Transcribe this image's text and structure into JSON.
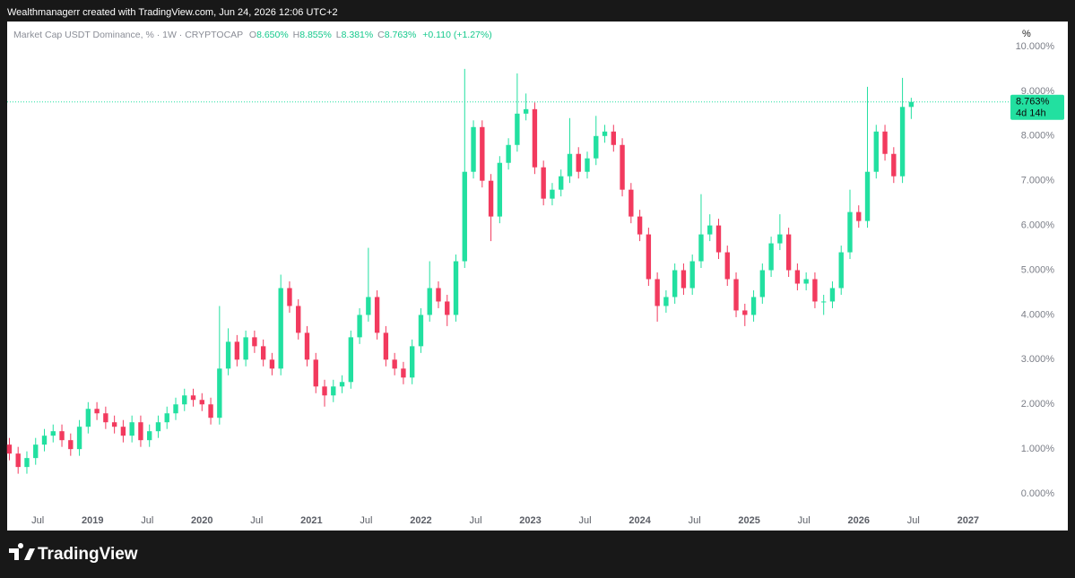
{
  "caption": "Wealthmanagerr created with TradingView.com, Jun 24, 2026 12:06 UTC+2",
  "brand": "TradingView",
  "chart_data": {
    "type": "candlestick",
    "title": "Market Cap USDT Dominance, % · 1W · CRYPTOCAP",
    "ohlc": [
      {
        "name": "O",
        "value": 8.65,
        "label": "8.650%"
      },
      {
        "name": "H",
        "value": 8.855,
        "label": "8.855%"
      },
      {
        "name": "L",
        "value": 8.381,
        "label": "8.381%"
      },
      {
        "name": "C",
        "value": 8.763,
        "label": "8.763%"
      }
    ],
    "change": "+0.110 (+1.27%)",
    "unit": "%",
    "last_price": {
      "value": 8.763,
      "label": "8.763%"
    },
    "countdown": "4d 14h",
    "up_color": "#22e0a0",
    "down_color": "#f23a5e",
    "grid": false,
    "xlim": [
      2018.22,
      2027.37
    ],
    "xticks": [
      {
        "value": 2018.5,
        "label": "Jul"
      },
      2019,
      {
        "value": 2019.5,
        "label": "Jul"
      },
      2020,
      {
        "value": 2020.5,
        "label": "Jul"
      },
      2021,
      {
        "value": 2021.5,
        "label": "Jul"
      },
      2022,
      {
        "value": 2022.5,
        "label": "Jul"
      },
      2023,
      {
        "value": 2023.5,
        "label": "Jul"
      },
      2024,
      {
        "value": 2024.5,
        "label": "Jul"
      },
      2025,
      {
        "value": 2025.5,
        "label": "Jul"
      },
      2026,
      {
        "value": 2026.5,
        "label": "Jul"
      },
      2027
    ],
    "ylim": [
      -0.82,
      10.56
    ],
    "yticks": [
      {
        "value": 0,
        "label": "0.000%"
      },
      {
        "value": 1,
        "label": "1.000%"
      },
      {
        "value": 2,
        "label": "2.000%"
      },
      {
        "value": 3,
        "label": "3.000%"
      },
      {
        "value": 4,
        "label": "4.000%"
      },
      {
        "value": 5,
        "label": "5.000%"
      },
      {
        "value": 6,
        "label": "6.000%"
      },
      {
        "value": 7,
        "label": "7.000%"
      },
      {
        "value": 8,
        "label": "8.000%"
      },
      {
        "value": 9,
        "label": "9.000%"
      },
      {
        "value": 10,
        "label": "10.000%"
      }
    ],
    "x": [
      2018.24,
      2018.32,
      2018.4,
      2018.48,
      2018.56,
      2018.64,
      2018.72,
      2018.8,
      2018.88,
      2018.96,
      2019.04,
      2019.12,
      2019.2,
      2019.28,
      2019.36,
      2019.44,
      2019.52,
      2019.6,
      2019.68,
      2019.76,
      2019.84,
      2019.92,
      2020.0,
      2020.08,
      2020.16,
      2020.24,
      2020.32,
      2020.4,
      2020.48,
      2020.56,
      2020.64,
      2020.72,
      2020.8,
      2020.88,
      2020.96,
      2021.04,
      2021.12,
      2021.2,
      2021.28,
      2021.36,
      2021.44,
      2021.52,
      2021.6,
      2021.68,
      2021.76,
      2021.84,
      2021.92,
      2022.0,
      2022.08,
      2022.16,
      2022.24,
      2022.32,
      2022.4,
      2022.48,
      2022.56,
      2022.64,
      2022.72,
      2022.8,
      2022.88,
      2022.96,
      2023.04,
      2023.12,
      2023.2,
      2023.28,
      2023.36,
      2023.44,
      2023.52,
      2023.6,
      2023.68,
      2023.76,
      2023.84,
      2023.92,
      2024.0,
      2024.08,
      2024.16,
      2024.24,
      2024.32,
      2024.4,
      2024.48,
      2024.56,
      2024.64,
      2024.72,
      2024.8,
      2024.88,
      2024.96,
      2025.04,
      2025.12,
      2025.2,
      2025.28,
      2025.36,
      2025.44,
      2025.52,
      2025.6,
      2025.68,
      2025.76,
      2025.84,
      2025.92,
      2026.0,
      2026.08,
      2026.16,
      2026.24,
      2026.32,
      2026.4,
      2026.48
    ],
    "open": [
      1.1,
      0.9,
      0.6,
      0.8,
      1.1,
      1.3,
      1.4,
      1.2,
      1.0,
      1.5,
      1.9,
      1.8,
      1.6,
      1.5,
      1.3,
      1.6,
      1.2,
      1.4,
      1.6,
      1.8,
      2.0,
      2.2,
      2.1,
      2.0,
      1.7,
      2.8,
      3.4,
      3.0,
      3.5,
      3.3,
      3.0,
      2.8,
      4.6,
      4.2,
      3.6,
      3.0,
      2.4,
      2.2,
      2.4,
      2.5,
      3.5,
      4.0,
      4.4,
      3.6,
      3.0,
      2.8,
      2.6,
      3.3,
      4.0,
      4.6,
      4.3,
      4.0,
      5.2,
      7.2,
      8.2,
      7.0,
      6.2,
      7.4,
      7.8,
      8.5,
      8.6,
      7.3,
      6.6,
      6.8,
      7.1,
      7.6,
      7.2,
      7.5,
      8.0,
      8.1,
      7.8,
      6.8,
      6.2,
      5.8,
      4.8,
      4.2,
      4.4,
      5.0,
      4.6,
      5.2,
      5.8,
      6.0,
      5.4,
      4.8,
      4.1,
      4.0,
      4.4,
      5.0,
      5.6,
      5.8,
      5.0,
      4.7,
      4.8,
      4.3,
      4.3,
      4.6,
      5.4,
      6.3,
      6.1,
      7.2,
      8.1,
      7.6,
      7.1,
      8.65
    ],
    "high": [
      1.25,
      1.05,
      0.95,
      1.25,
      1.45,
      1.55,
      1.55,
      1.35,
      1.65,
      2.05,
      2.05,
      1.95,
      1.75,
      1.65,
      1.75,
      1.75,
      1.55,
      1.75,
      1.95,
      2.15,
      2.35,
      2.35,
      2.25,
      2.15,
      4.2,
      3.7,
      3.55,
      3.65,
      3.65,
      3.45,
      3.15,
      4.9,
      4.75,
      4.35,
      3.75,
      3.15,
      2.55,
      2.55,
      2.65,
      3.65,
      4.15,
      5.5,
      4.55,
      3.75,
      3.15,
      2.95,
      3.45,
      4.15,
      5.2,
      4.75,
      4.45,
      5.35,
      9.5,
      8.35,
      8.35,
      7.15,
      7.55,
      7.95,
      9.4,
      8.95,
      8.75,
      7.45,
      6.95,
      7.25,
      8.4,
      7.75,
      7.65,
      8.45,
      8.25,
      8.25,
      7.95,
      6.95,
      6.35,
      5.95,
      4.95,
      4.55,
      5.15,
      5.15,
      5.35,
      6.7,
      6.25,
      6.15,
      5.55,
      4.95,
      4.25,
      4.55,
      5.15,
      5.75,
      6.25,
      5.95,
      5.15,
      4.95,
      4.95,
      4.45,
      4.75,
      5.55,
      6.8,
      6.45,
      9.1,
      8.25,
      8.25,
      7.75,
      9.3,
      8.855
    ],
    "low": [
      0.75,
      0.45,
      0.45,
      0.65,
      0.95,
      1.15,
      1.05,
      0.85,
      0.85,
      1.35,
      1.65,
      1.45,
      1.35,
      1.15,
      1.15,
      1.05,
      1.05,
      1.25,
      1.45,
      1.65,
      1.85,
      1.95,
      1.85,
      1.55,
      1.55,
      2.65,
      2.85,
      2.85,
      3.15,
      2.85,
      2.65,
      2.65,
      4.05,
      3.45,
      2.85,
      2.25,
      1.95,
      2.05,
      2.25,
      2.35,
      3.35,
      3.85,
      3.45,
      2.85,
      2.65,
      2.45,
      2.45,
      3.15,
      3.85,
      4.15,
      3.75,
      3.85,
      5.05,
      7.05,
      6.85,
      5.65,
      6.05,
      7.25,
      7.65,
      8.35,
      7.15,
      6.45,
      6.45,
      6.65,
      6.95,
      7.05,
      7.05,
      7.35,
      7.85,
      7.65,
      6.65,
      6.05,
      5.65,
      4.65,
      3.85,
      4.05,
      4.25,
      4.45,
      4.45,
      5.05,
      5.65,
      5.25,
      4.65,
      3.95,
      3.75,
      3.85,
      4.25,
      4.85,
      5.45,
      4.85,
      4.55,
      4.55,
      4.15,
      4.0,
      4.15,
      4.45,
      5.25,
      5.95,
      5.95,
      7.05,
      7.45,
      6.95,
      6.95,
      8.381
    ],
    "close": [
      0.9,
      0.6,
      0.8,
      1.1,
      1.3,
      1.4,
      1.2,
      1.0,
      1.5,
      1.9,
      1.8,
      1.6,
      1.5,
      1.3,
      1.6,
      1.2,
      1.4,
      1.6,
      1.8,
      2.0,
      2.2,
      2.1,
      2.0,
      1.7,
      2.8,
      3.4,
      3.0,
      3.5,
      3.3,
      3.0,
      2.8,
      4.6,
      4.2,
      3.6,
      3.0,
      2.4,
      2.2,
      2.4,
      2.5,
      3.5,
      4.0,
      4.4,
      3.6,
      3.0,
      2.8,
      2.6,
      3.3,
      4.0,
      4.6,
      4.3,
      4.0,
      5.2,
      7.2,
      8.2,
      7.0,
      6.2,
      7.4,
      7.8,
      8.5,
      8.6,
      7.3,
      6.6,
      6.8,
      7.1,
      7.6,
      7.2,
      7.5,
      8.0,
      8.1,
      7.8,
      6.8,
      6.2,
      5.8,
      4.8,
      4.2,
      4.4,
      5.0,
      4.6,
      5.2,
      5.8,
      6.0,
      5.4,
      4.8,
      4.1,
      4.0,
      4.4,
      5.0,
      5.6,
      5.8,
      5.0,
      4.7,
      4.8,
      4.3,
      4.3,
      4.6,
      5.4,
      6.3,
      6.1,
      7.2,
      8.1,
      7.6,
      7.1,
      8.65,
      8.763
    ]
  }
}
